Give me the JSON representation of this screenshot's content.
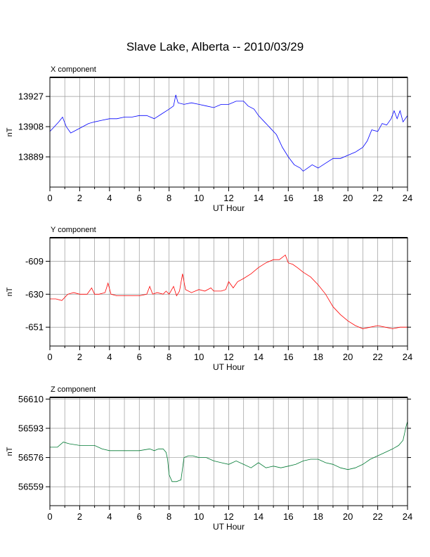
{
  "title": "Slave Lake, Alberta -- 2010/03/29",
  "chart_data": [
    {
      "type": "line",
      "title": "X component",
      "xlabel": "UT Hour",
      "ylabel": "nT",
      "xlim": [
        0,
        24
      ],
      "ylim": [
        13870,
        13939
      ],
      "xticks": [
        "0",
        "2",
        "4",
        "6",
        "8",
        "10",
        "12",
        "14",
        "16",
        "18",
        "20",
        "22",
        "24"
      ],
      "yticks": [
        "13927",
        "13908",
        "13889"
      ],
      "grid": true,
      "series": [
        {
          "color": "#0000ff",
          "x": [
            0,
            0.3,
            0.6,
            0.85,
            1.1,
            1.4,
            1.8,
            2.2,
            2.6,
            3.0,
            3.5,
            4.0,
            4.5,
            5.0,
            5.5,
            6.0,
            6.5,
            7.0,
            7.5,
            8.0,
            8.3,
            8.45,
            8.6,
            9.0,
            9.5,
            10.0,
            10.5,
            11.0,
            11.5,
            12.0,
            12.5,
            13.0,
            13.3,
            13.7,
            14.0,
            14.4,
            14.8,
            15.2,
            15.6,
            16.0,
            16.4,
            16.8,
            17.0,
            17.3,
            17.6,
            18.0,
            18.5,
            19.0,
            19.5,
            20.0,
            20.5,
            21.0,
            21.3,
            21.6,
            22.0,
            22.3,
            22.6,
            22.9,
            23.1,
            23.3,
            23.5,
            23.7,
            24.0
          ],
          "values": [
            13905,
            13908,
            13911,
            13914,
            13908,
            13904,
            13906,
            13908,
            13910,
            13911,
            13912,
            13913,
            13913,
            13914,
            13914,
            13915,
            13915,
            13913,
            13916,
            13919,
            13921,
            13928,
            13923,
            13922,
            13923,
            13922,
            13921,
            13920,
            13922,
            13922,
            13924,
            13924,
            13921,
            13919,
            13915,
            13911,
            13907,
            13903,
            13895,
            13889,
            13884,
            13882,
            13880,
            13882,
            13884,
            13882,
            13885,
            13888,
            13888,
            13890,
            13892,
            13895,
            13899,
            13906,
            13905,
            13910,
            13909,
            13913,
            13918,
            13913,
            13918,
            13911,
            13915
          ]
        }
      ]
    },
    {
      "type": "line",
      "title": "Y component",
      "xlabel": "UT Hour",
      "ylabel": "nT",
      "xlim": [
        0,
        24
      ],
      "ylim": [
        -663,
        -594
      ],
      "xticks": [
        "0",
        "2",
        "4",
        "6",
        "8",
        "10",
        "12",
        "14",
        "16",
        "18",
        "20",
        "22",
        "24"
      ],
      "yticks": [
        "-609",
        "-630",
        "-651"
      ],
      "grid": true,
      "series": [
        {
          "color": "#ff0000",
          "x": [
            0,
            0.4,
            0.8,
            1.2,
            1.6,
            2.0,
            2.5,
            2.8,
            3.0,
            3.3,
            3.7,
            3.9,
            4.1,
            4.5,
            5.0,
            5.5,
            6.0,
            6.5,
            6.7,
            6.9,
            7.2,
            7.6,
            7.8,
            8.0,
            8.3,
            8.5,
            8.7,
            8.9,
            9.1,
            9.5,
            10.0,
            10.4,
            10.8,
            11.0,
            11.5,
            11.8,
            12.0,
            12.3,
            12.6,
            13.0,
            13.5,
            14.0,
            14.5,
            15.0,
            15.4,
            15.8,
            16.0,
            16.3,
            16.6,
            17.0,
            17.5,
            18.0,
            18.5,
            19.0,
            19.5,
            20.0,
            20.5,
            21.0,
            21.5,
            22.0,
            22.5,
            23.0,
            23.5,
            24.0
          ],
          "values": [
            -633,
            -633,
            -634,
            -630,
            -629,
            -630,
            -630,
            -626,
            -630,
            -630,
            -629,
            -623,
            -630,
            -631,
            -631,
            -631,
            -631,
            -630,
            -625,
            -630,
            -629,
            -630,
            -628,
            -630,
            -625,
            -631,
            -628,
            -617,
            -627,
            -629,
            -627,
            -628,
            -626,
            -628,
            -628,
            -627,
            -622,
            -626,
            -622,
            -620,
            -617,
            -613,
            -610,
            -608,
            -608,
            -605,
            -610,
            -611,
            -613,
            -616,
            -619,
            -624,
            -630,
            -638,
            -643,
            -647,
            -650,
            -652,
            -651,
            -650,
            -651,
            -652,
            -651,
            -651
          ]
        }
      ]
    },
    {
      "type": "line",
      "title": "Z component",
      "xlabel": "UT Hour",
      "ylabel": "nT",
      "xlim": [
        0,
        24
      ],
      "ylim": [
        56548,
        56611
      ],
      "xticks": [
        "0",
        "2",
        "4",
        "6",
        "8",
        "10",
        "12",
        "14",
        "16",
        "18",
        "20",
        "22",
        "24"
      ],
      "yticks": [
        "56610",
        "56593",
        "56576",
        "56559"
      ],
      "grid": true,
      "series": [
        {
          "color": "#007a33",
          "x": [
            0,
            0.5,
            0.9,
            1.3,
            2.0,
            2.5,
            3.0,
            3.5,
            4.0,
            5.0,
            6.0,
            6.7,
            7.0,
            7.3,
            7.6,
            7.8,
            7.9,
            8.0,
            8.2,
            8.5,
            8.8,
            9.0,
            9.3,
            9.6,
            10.0,
            10.5,
            11.0,
            11.5,
            12.0,
            12.5,
            13.0,
            13.5,
            14.0,
            14.5,
            15.0,
            15.5,
            16.0,
            16.5,
            17.0,
            17.5,
            18.0,
            18.5,
            19.0,
            19.5,
            20.0,
            20.5,
            21.0,
            21.5,
            22.0,
            22.5,
            23.0,
            23.4,
            23.7,
            23.9,
            24.0
          ],
          "values": [
            56582,
            56582,
            56585,
            56584,
            56583,
            56583,
            56583,
            56581,
            56580,
            56580,
            56580,
            56581,
            56580,
            56581,
            56581,
            56579,
            56575,
            56566,
            56562,
            56562,
            56563,
            56576,
            56577,
            56577,
            56576,
            56576,
            56574,
            56573,
            56572,
            56574,
            56572,
            56570,
            56573,
            56570,
            56571,
            56570,
            56571,
            56572,
            56574,
            56575,
            56575,
            56573,
            56572,
            56570,
            56569,
            56570,
            56572,
            56575,
            56577,
            56579,
            56581,
            56583,
            56586,
            56594,
            56597
          ]
        }
      ]
    }
  ]
}
